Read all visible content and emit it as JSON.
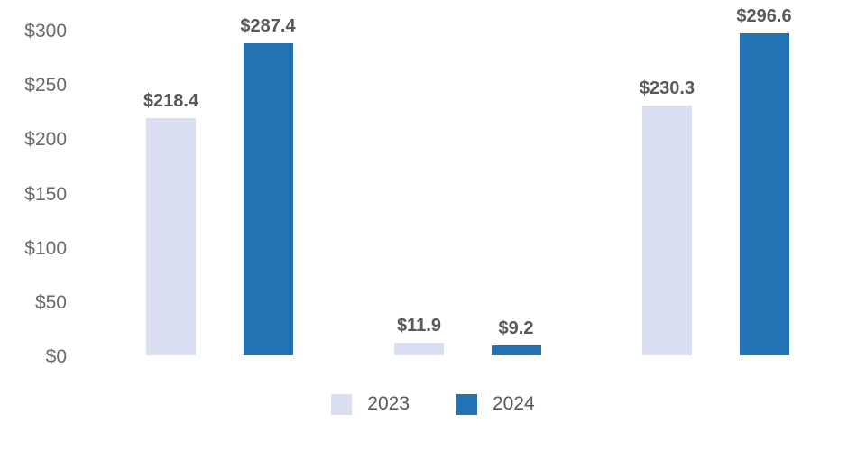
{
  "page": {
    "background": "#ffffff"
  },
  "chart_data": {
    "type": "bar",
    "title": "",
    "categories": [
      "",
      "",
      ""
    ],
    "series": [
      {
        "name": "2023",
        "color": "#D9DEF0",
        "values": [
          218.4,
          11.9,
          230.3
        ],
        "data_labels": [
          "$218.4",
          "$11.9",
          "$230.3"
        ]
      },
      {
        "name": "2024",
        "color": "#2272B4",
        "values": [
          287.4,
          9.2,
          296.6
        ],
        "data_labels": [
          "$287.4",
          "$9.2",
          "$296.6"
        ]
      }
    ],
    "y_axis": {
      "range": [
        0,
        300
      ],
      "ticks": [
        {
          "value": 0,
          "label": "$0"
        },
        {
          "value": 50,
          "label": "$50"
        },
        {
          "value": 100,
          "label": "$100"
        },
        {
          "value": 150,
          "label": "$150"
        },
        {
          "value": 200,
          "label": "$200"
        },
        {
          "value": 250,
          "label": "$250"
        },
        {
          "value": 300,
          "label": "$300"
        }
      ]
    },
    "x_axis": {
      "labels_visible": false
    },
    "grid": false,
    "legend": {
      "position": "bottom",
      "items": [
        "2023",
        "2024"
      ]
    },
    "colors": {
      "series_2023": "#D9DEF0",
      "series_2024": "#2272B4",
      "data_label_text": "#595959",
      "axis_tick_text": "#696969",
      "legend_text": "#595959"
    }
  }
}
